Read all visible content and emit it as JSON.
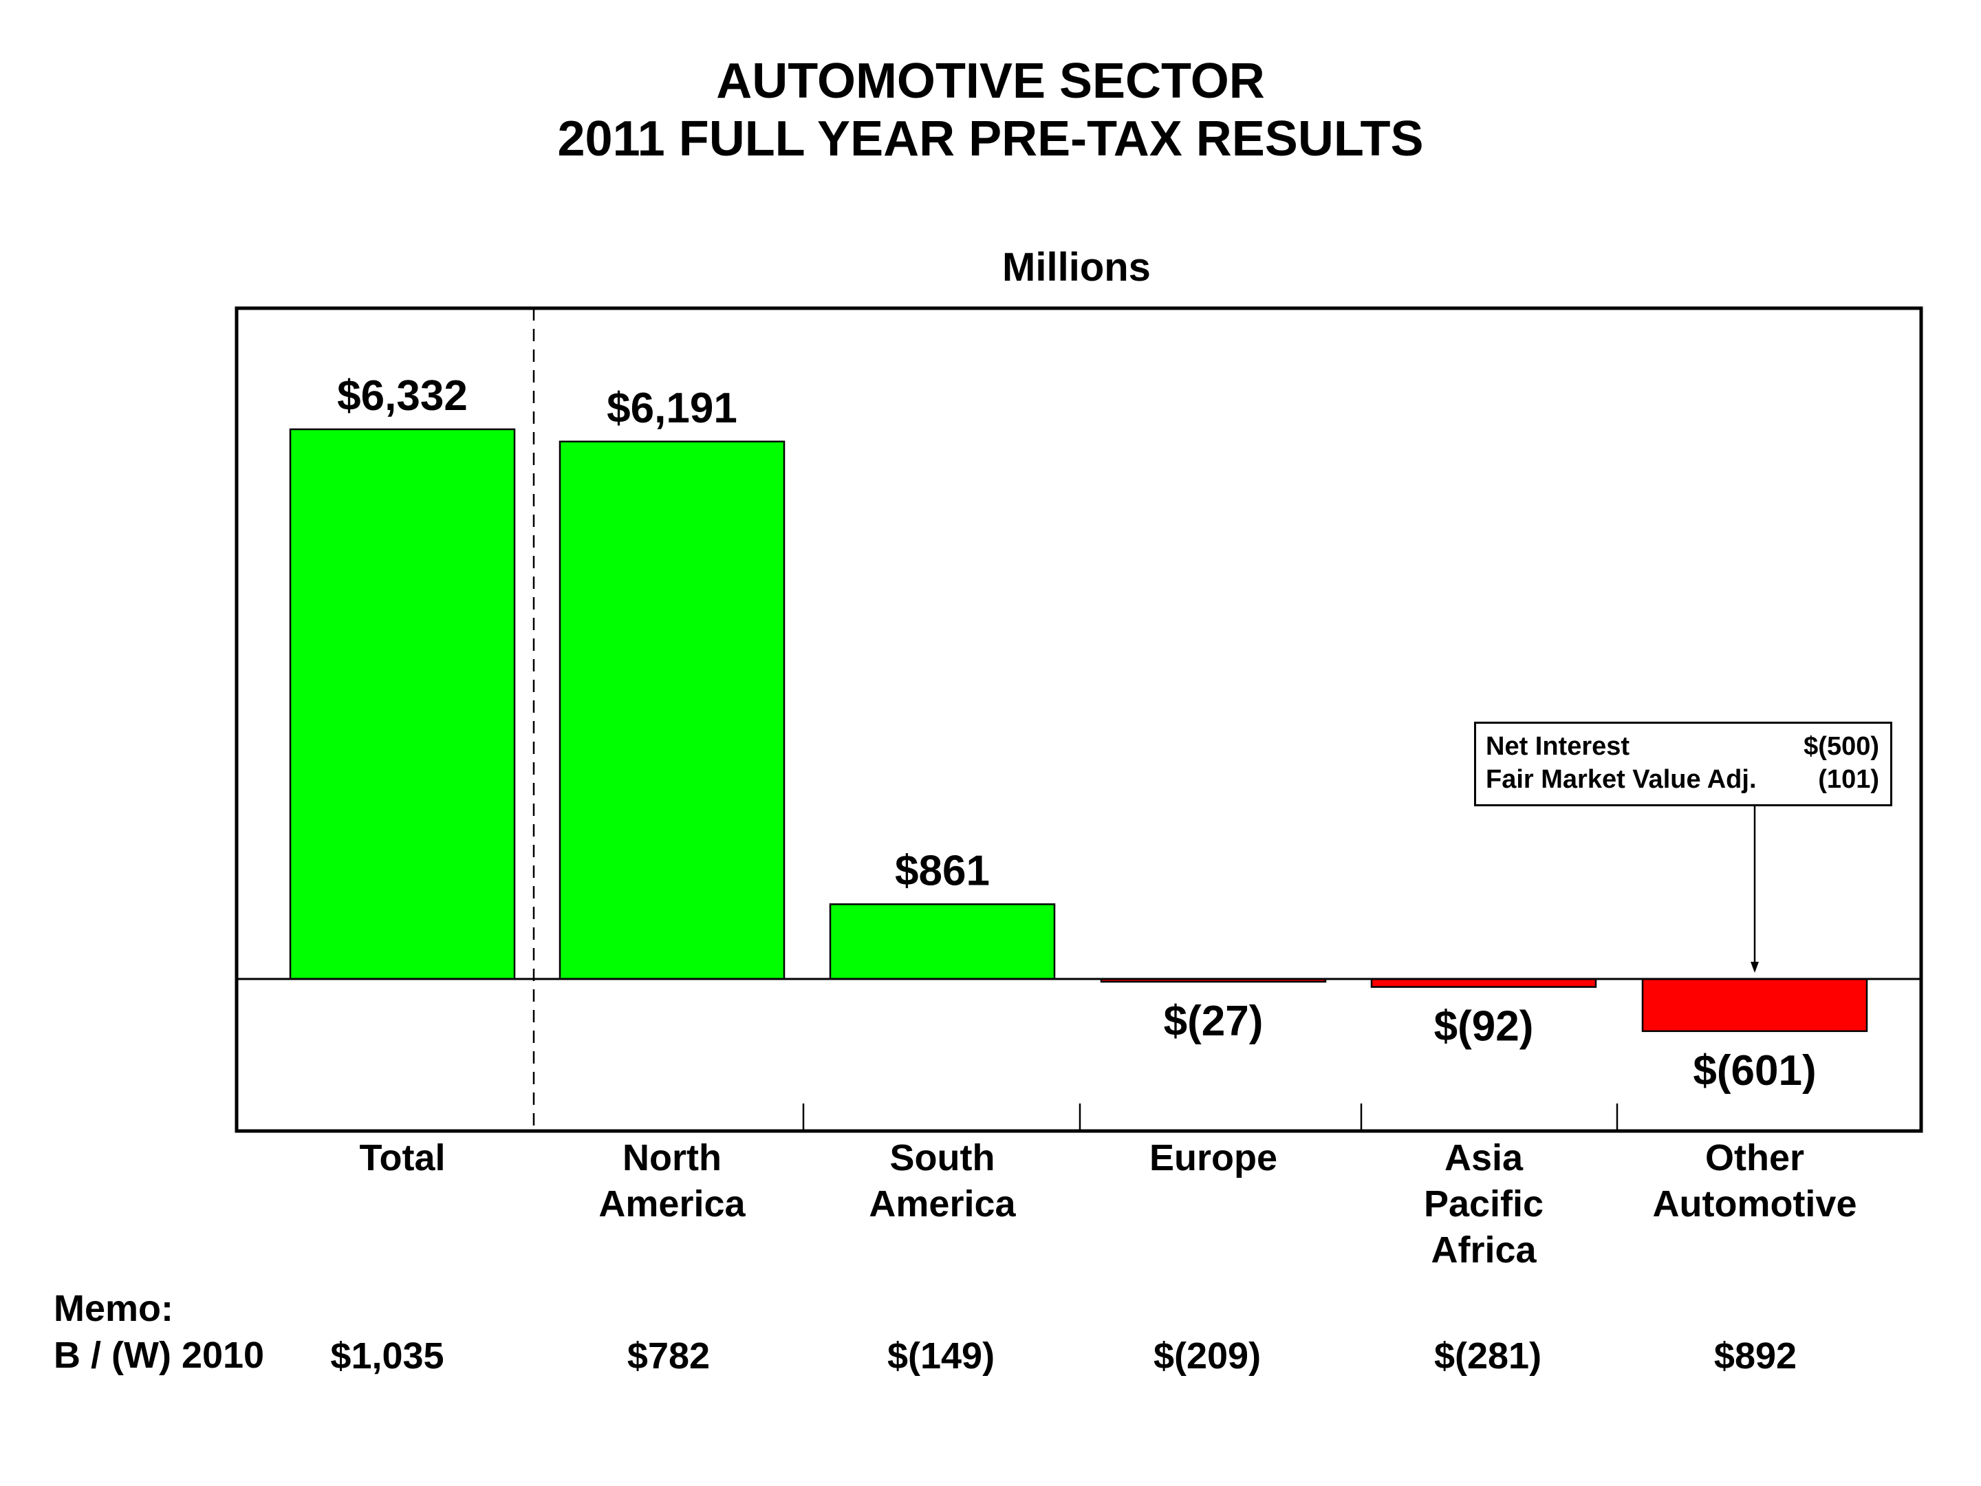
{
  "header": {
    "title_line1": "AUTOMOTIVE SECTOR",
    "title_line2": "2011 FULL YEAR PRE-TAX RESULTS",
    "units": "Millions"
  },
  "colors": {
    "positive": "#00ff00",
    "negative": "#ff0000",
    "frame": "#000000"
  },
  "chart_data": {
    "type": "bar",
    "title": "AUTOMOTIVE SECTOR 2011 FULL YEAR PRE-TAX RESULTS",
    "subtitle": "Millions",
    "xlabel": "",
    "ylabel": "",
    "grid": false,
    "categories": [
      "Total",
      "North America",
      "South America",
      "Europe",
      "Asia Pacific Africa",
      "Other Automotive"
    ],
    "category_label_lines": [
      [
        "Total"
      ],
      [
        "North",
        "America"
      ],
      [
        "South",
        "America"
      ],
      [
        "Europe"
      ],
      [
        "Asia",
        "Pacific",
        "Africa"
      ],
      [
        "Other",
        "Automotive"
      ]
    ],
    "values": [
      6332,
      6191,
      861,
      -27,
      -92,
      -601
    ],
    "data_labels": [
      "$6,332",
      "$6,191",
      "$861",
      "$(27)",
      "$(92)",
      "$(601)"
    ],
    "ylim": [
      -1500,
      7200
    ],
    "annotation": {
      "target_category": "Other Automotive",
      "rows": [
        {
          "label": "Net Interest",
          "value": "$(500)"
        },
        {
          "label": "Fair Market Value Adj.",
          "value": "(101)"
        }
      ]
    },
    "memo": {
      "heading": "Memo:",
      "row_label": "B / (W) 2010",
      "values": [
        "$1,035",
        "$782",
        "$(149)",
        "$(209)",
        "$(281)",
        "$892"
      ]
    }
  }
}
